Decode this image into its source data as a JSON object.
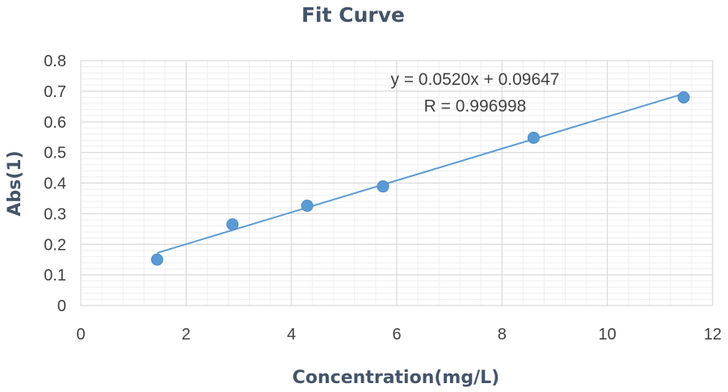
{
  "chart_data": {
    "type": "scatter",
    "title": "Fit Curve",
    "xlabel": "Concentration(mg/L)",
    "ylabel": "Abs(1)",
    "xlim": [
      0,
      12
    ],
    "ylim": [
      0,
      0.8
    ],
    "x_ticks": [
      0,
      2,
      4,
      6,
      8,
      10,
      12
    ],
    "y_ticks": [
      0,
      0.1,
      0.2,
      0.3,
      0.4,
      0.5,
      0.6,
      0.7,
      0.8
    ],
    "x_tick_labels": [
      "0",
      "2",
      "4",
      "6",
      "8",
      "10",
      "12"
    ],
    "y_tick_labels": [
      "0",
      "0.1",
      "0.2",
      "0.3",
      "0.4",
      "0.5",
      "0.6",
      "0.7",
      "0.8"
    ],
    "grid": true,
    "legend": "none",
    "points": [
      {
        "x": 1.45,
        "y": 0.15
      },
      {
        "x": 2.88,
        "y": 0.265
      },
      {
        "x": 4.3,
        "y": 0.326
      },
      {
        "x": 5.74,
        "y": 0.389
      },
      {
        "x": 8.6,
        "y": 0.548
      },
      {
        "x": 11.45,
        "y": 0.68
      }
    ],
    "trendline": {
      "type": "linear",
      "slope": 0.052,
      "intercept": 0.09647,
      "x_range": [
        1.45,
        11.45
      ]
    },
    "annotations": {
      "equation": "y = 0.0520x + 0.09647",
      "r_value": "R = 0.996998"
    },
    "colors": {
      "marker": "#5b9bd5",
      "line": "#5b9bd5",
      "major_grid": "#d9d9d9",
      "minor_grid": "#eeeeee",
      "text": "#404040",
      "title": "#44546a"
    }
  }
}
